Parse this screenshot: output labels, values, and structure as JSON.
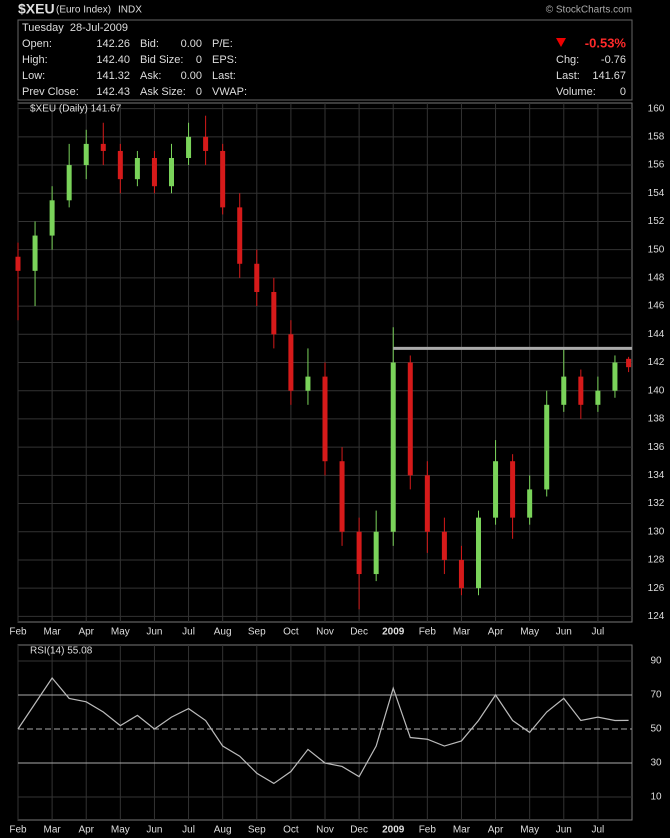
{
  "header": {
    "symbol": "$XEU",
    "name": "(Euro Index)",
    "exchange": "INDX",
    "copyright": "© StockCharts.com",
    "date": "Tuesday  28-Jul-2009",
    "fields": [
      {
        "label": "Open:",
        "value": "142.26"
      },
      {
        "label": "Bid:",
        "value": "0.00"
      },
      {
        "label": "P/E:",
        "value": ""
      },
      {
        "label": "High:",
        "value": "142.40"
      },
      {
        "label": "Bid Size:",
        "value": "0"
      },
      {
        "label": "EPS:",
        "value": ""
      },
      {
        "label": "Low:",
        "value": "141.32"
      },
      {
        "label": "Ask:",
        "value": "0.00"
      },
      {
        "label": "Last:",
        "value": ""
      },
      {
        "label": "Prev Close:",
        "value": "142.43"
      },
      {
        "label": "Ask Size:",
        "value": "0"
      },
      {
        "label": "VWAP:",
        "value": ""
      }
    ],
    "change_pct": "-0.53%",
    "right_fields": [
      {
        "label": "Chg:",
        "value": "-0.76"
      },
      {
        "label": "Last:",
        "value": "141.67"
      },
      {
        "label": "Volume:",
        "value": "0"
      }
    ]
  },
  "chart_data": [
    {
      "type": "candlestick",
      "legend": "$XEU (Daily) 141.67",
      "x": [
        0,
        0.5,
        1,
        1.5,
        2,
        2.5,
        3,
        3.5,
        4,
        4.5,
        5,
        5.5,
        6,
        6.5,
        7,
        7.5,
        8,
        8.5,
        9,
        9.5,
        10,
        10.5,
        11,
        11.5,
        12,
        12.5,
        13,
        13.5,
        14,
        14.5,
        15,
        15.5,
        16,
        16.5,
        17,
        17.5,
        17.9
      ],
      "open": [
        149.5,
        148.5,
        151,
        153.5,
        156,
        157.5,
        157,
        155,
        156.5,
        154.5,
        156.5,
        158,
        157,
        153,
        149,
        147,
        144,
        140,
        141,
        135,
        130,
        127,
        130,
        142,
        134,
        130,
        128,
        126,
        131,
        135,
        131,
        133,
        139,
        141,
        139,
        140,
        142.26
      ],
      "high": [
        150.5,
        152,
        154.5,
        157.5,
        158.5,
        159,
        157.5,
        157,
        157,
        157.5,
        159,
        159.5,
        157.5,
        154,
        150,
        148,
        145,
        143,
        142,
        136,
        131,
        131.5,
        144.5,
        142.5,
        135,
        131,
        129,
        131.5,
        136.5,
        135.5,
        134,
        140,
        143,
        141.5,
        141,
        142.5,
        142.4
      ],
      "low": [
        145,
        146,
        150,
        153,
        155,
        156,
        154,
        154.5,
        154,
        154,
        156,
        156,
        152.5,
        148,
        146,
        143,
        139,
        139,
        134,
        129,
        124.5,
        126.5,
        129,
        133,
        128.5,
        127,
        125.5,
        125.5,
        130.5,
        129.5,
        130.5,
        132.5,
        138.5,
        138,
        138.5,
        139.5,
        141.32
      ],
      "close": [
        148.5,
        151,
        153.5,
        156,
        157.5,
        157,
        155,
        156.5,
        154.5,
        156.5,
        158,
        157,
        153,
        149,
        147,
        144,
        140,
        141,
        135,
        130,
        127,
        130,
        142,
        134,
        130,
        128,
        126,
        131,
        135,
        131,
        133,
        139,
        141,
        139,
        140,
        142,
        141.67
      ],
      "up_color": "#7ad35a",
      "down_color": "#d61a1a",
      "resistance": 143,
      "xlim": [
        0,
        18
      ],
      "ylim": [
        123.6,
        160.4
      ],
      "xticks": [
        {
          "value": 0,
          "label": "Feb"
        },
        {
          "value": 1,
          "label": "Mar"
        },
        {
          "value": 2,
          "label": "Apr"
        },
        {
          "value": 3,
          "label": "May"
        },
        {
          "value": 4,
          "label": "Jun"
        },
        {
          "value": 5,
          "label": "Jul"
        },
        {
          "value": 6,
          "label": "Aug"
        },
        {
          "value": 7,
          "label": "Sep"
        },
        {
          "value": 8,
          "label": "Oct"
        },
        {
          "value": 9,
          "label": "Nov"
        },
        {
          "value": 10,
          "label": "Dec"
        },
        {
          "value": 11,
          "label": "2009"
        },
        {
          "value": 12,
          "label": "Feb"
        },
        {
          "value": 13,
          "label": "Mar"
        },
        {
          "value": 14,
          "label": "Apr"
        },
        {
          "value": 15,
          "label": "May"
        },
        {
          "value": 16,
          "label": "Jun"
        },
        {
          "value": 17,
          "label": "Jul"
        }
      ],
      "yticks": [
        124,
        126,
        128,
        130,
        132,
        134,
        136,
        138,
        140,
        142,
        144,
        146,
        148,
        150,
        152,
        154,
        156,
        158,
        160
      ],
      "grid": true
    },
    {
      "type": "line",
      "legend": "RSI(14) 55.08",
      "x": [
        0,
        0.5,
        1,
        1.5,
        2,
        2.5,
        3,
        3.5,
        4,
        4.5,
        5,
        5.5,
        6,
        6.5,
        7,
        7.5,
        8,
        8.5,
        9,
        9.5,
        10,
        10.5,
        11,
        11.5,
        12,
        12.5,
        13,
        13.5,
        14,
        14.5,
        15,
        15.5,
        16,
        16.5,
        17,
        17.5,
        17.9
      ],
      "values": [
        50,
        65,
        80,
        68,
        66,
        60,
        52,
        58,
        50,
        57,
        62,
        55,
        40,
        34,
        24,
        18,
        25,
        38,
        30,
        28,
        22,
        40,
        74,
        45,
        44,
        40,
        43,
        55,
        70,
        55,
        48,
        60,
        68,
        55,
        57,
        55,
        55.08
      ],
      "color": "#bbbbbb",
      "ref_lines": [
        30,
        50,
        70
      ],
      "xlim": [
        0,
        18
      ],
      "ylim": [
        -3.5,
        99.4
      ],
      "xticks": [
        {
          "value": 0,
          "label": "Feb"
        },
        {
          "value": 1,
          "label": "Mar"
        },
        {
          "value": 2,
          "label": "Apr"
        },
        {
          "value": 3,
          "label": "May"
        },
        {
          "value": 4,
          "label": "Jun"
        },
        {
          "value": 5,
          "label": "Jul"
        },
        {
          "value": 6,
          "label": "Aug"
        },
        {
          "value": 7,
          "label": "Sep"
        },
        {
          "value": 8,
          "label": "Oct"
        },
        {
          "value": 9,
          "label": "Nov"
        },
        {
          "value": 10,
          "label": "Dec"
        },
        {
          "value": 11,
          "label": "2009"
        },
        {
          "value": 12,
          "label": "Feb"
        },
        {
          "value": 13,
          "label": "Mar"
        },
        {
          "value": 14,
          "label": "Apr"
        },
        {
          "value": 15,
          "label": "May"
        },
        {
          "value": 16,
          "label": "Jun"
        },
        {
          "value": 17,
          "label": "Jul"
        }
      ],
      "yticks": [
        10,
        30,
        50,
        70,
        90
      ],
      "grid": true
    }
  ]
}
